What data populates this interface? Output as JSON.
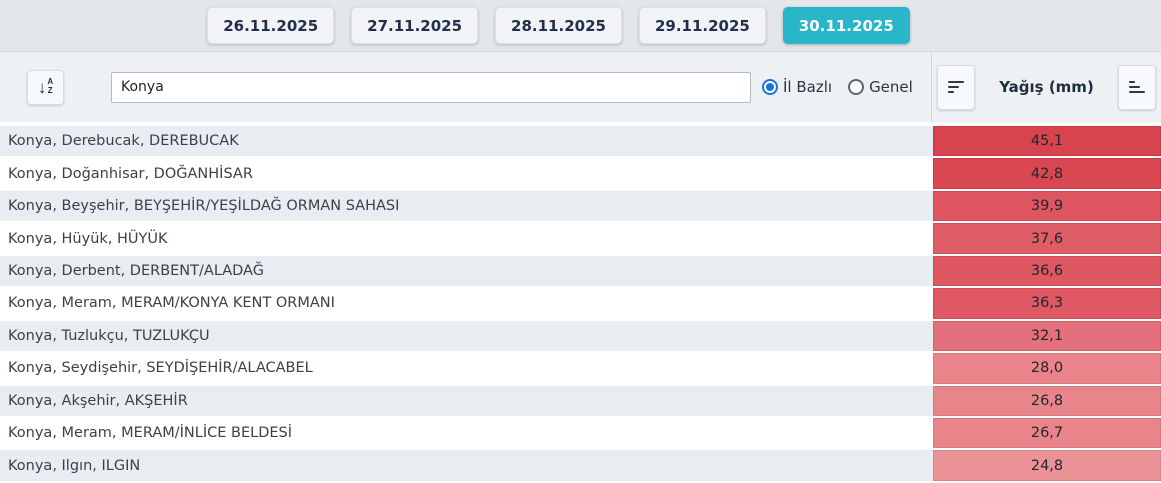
{
  "date_tabs": [
    {
      "label": "26.11.2025",
      "selected": false
    },
    {
      "label": "27.11.2025",
      "selected": false
    },
    {
      "label": "28.11.2025",
      "selected": false
    },
    {
      "label": "29.11.2025",
      "selected": false
    },
    {
      "label": "30.11.2025",
      "selected": true
    }
  ],
  "toolbar": {
    "sort_alpha_icon": "sort-alphabetical-down-icon",
    "sort_alpha_letters": {
      "arrow": "↓",
      "top": "A",
      "bottom": "Z"
    },
    "search": {
      "value": "Konya",
      "placeholder": ""
    },
    "radios": [
      {
        "label": "İl Bazlı",
        "selected": true
      },
      {
        "label": "Genel",
        "selected": false
      }
    ],
    "value_column": {
      "header": "Yağış (mm)",
      "sort_desc_icon": "sort-amount-descending-icon",
      "sort_asc_icon": "sort-amount-ascending-icon"
    }
  },
  "colors": {
    "selected_tab_bg": "#29b6c8",
    "selected_tab_text": "#ffffff",
    "radio_accent": "#1974d2",
    "row_alt_bg": "#e9edf2",
    "band_bg": "#e4e7ea",
    "toolbar_bg": "#eef1f4"
  },
  "table": {
    "rows": [
      {
        "location": "Konya, Derebucak, DEREBUCAK",
        "value": "45,1",
        "fill": "#d7434f",
        "border": "#c93744"
      },
      {
        "location": "Konya, Doğanhisar, DOĞANHİSAR",
        "value": "42,8",
        "fill": "#d94752",
        "border": "#cb3a46"
      },
      {
        "location": "Konya, Beyşehir, BEYŞEHİR/YEŞİLDAĞ ORMAN SAHASI",
        "value": "39,9",
        "fill": "#dd5560",
        "border": "#d04551"
      },
      {
        "location": "Konya, Hüyük, HÜYÜK",
        "value": "37,6",
        "fill": "#df5d67",
        "border": "#d24d58"
      },
      {
        "location": "Konya, Derbent, DERBENT/ALADAĞ",
        "value": "36,6",
        "fill": "#de5862",
        "border": "#d14854"
      },
      {
        "location": "Konya, Meram, MERAM/KONYA KENT ORMANI",
        "value": "36,3",
        "fill": "#de5963",
        "border": "#d14955"
      },
      {
        "location": "Konya, Tuzlukçu, TUZLUKÇU",
        "value": "32,1",
        "fill": "#e3707a",
        "border": "#d75f6a"
      },
      {
        "location": "Konya, Seydişehir, SEYDİŞEHİR/ALACABEL",
        "value": "28,0",
        "fill": "#e8848a",
        "border": "#dc737b"
      },
      {
        "location": "Konya, Akşehir, AKŞEHİR",
        "value": "26,8",
        "fill": "#e8858b",
        "border": "#dc747c"
      },
      {
        "location": "Konya, Meram, MERAM/İNLİCE BELDESİ",
        "value": "26,7",
        "fill": "#e8848a",
        "border": "#dc737b"
      },
      {
        "location": "Konya, Ilgın, ILGIN",
        "value": "24,8",
        "fill": "#eb9296",
        "border": "#df8187"
      }
    ]
  }
}
